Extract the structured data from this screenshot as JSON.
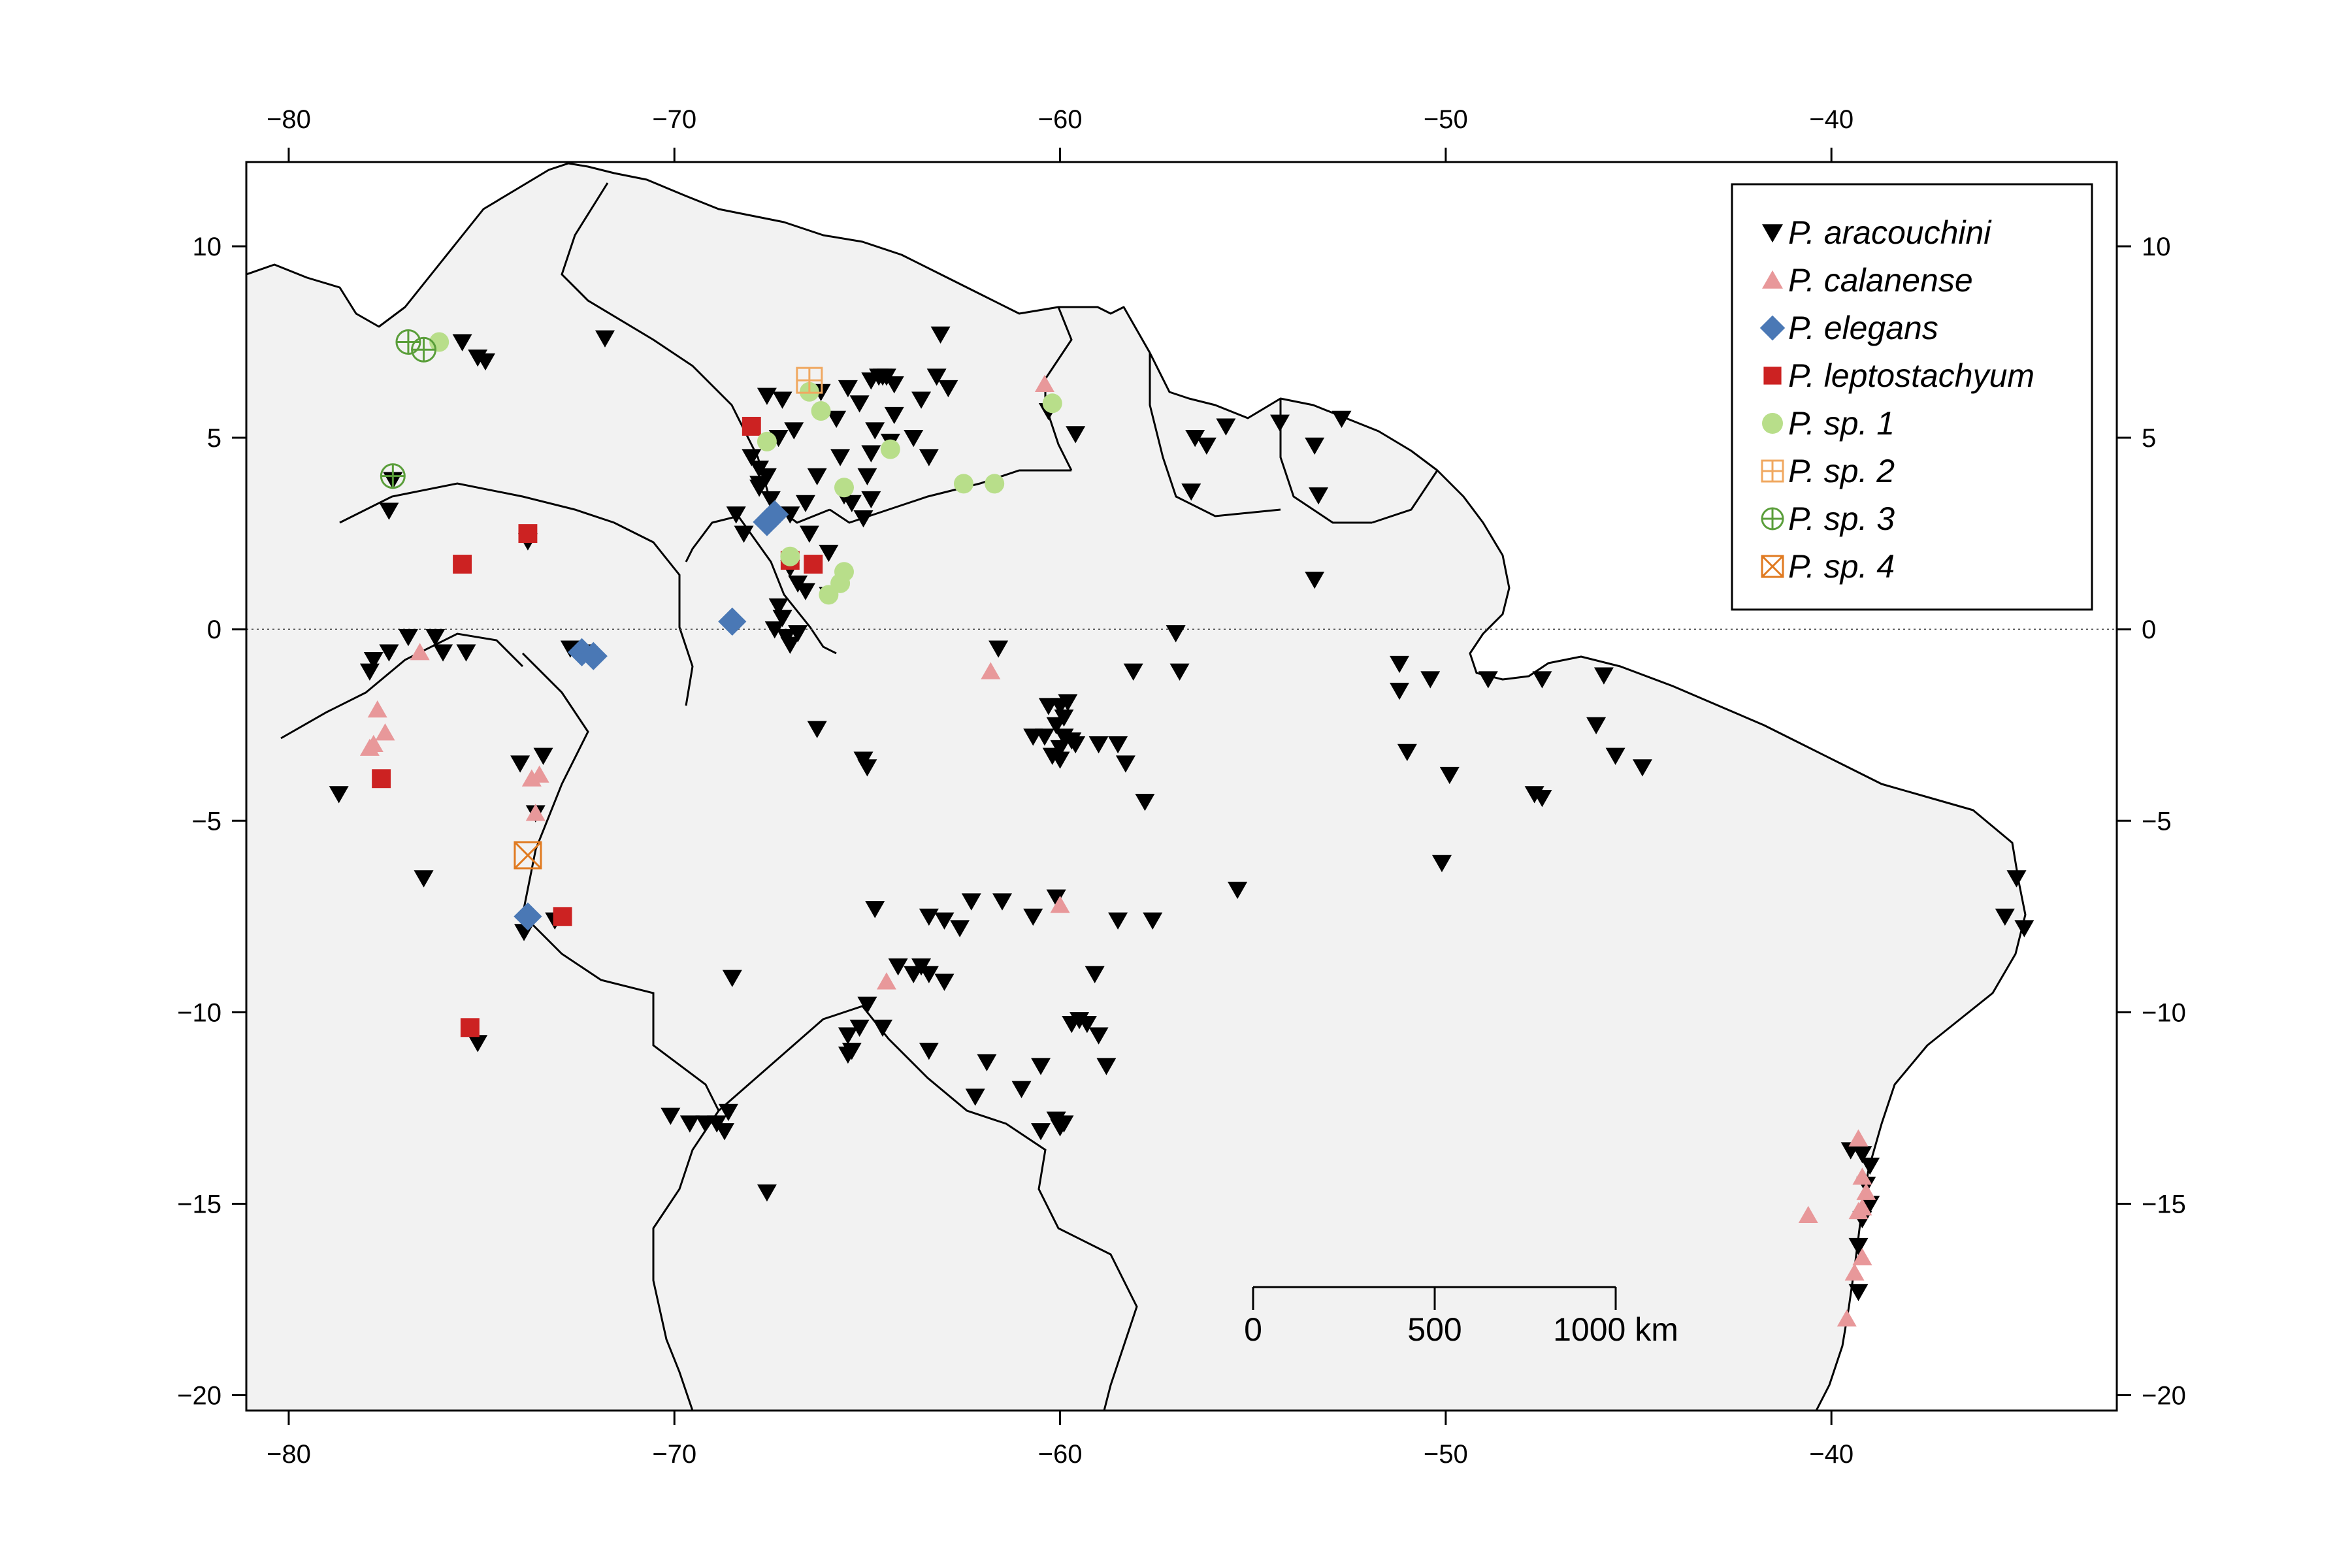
{
  "axes": {
    "x_ticks": [
      -80,
      -70,
      -60,
      -50,
      -40
    ],
    "y_ticks": [
      10,
      5,
      0,
      -5,
      -10,
      -15,
      -20
    ],
    "x_tick_labels": [
      "−80",
      "−70",
      "−60",
      "−50",
      "−40"
    ],
    "y_tick_labels": [
      "10",
      "5",
      "0",
      "−5",
      "−10",
      "−15",
      "−20"
    ],
    "xlim": [
      -81.1,
      -32.6
    ],
    "ylim": [
      -20.4,
      12.2
    ],
    "equator": 0
  },
  "colors": {
    "land": "#f2f2f2",
    "coast": "#000000",
    "aracouchini": "#000000",
    "calanense": "#e8989a",
    "elegans": "#4a78b5",
    "leptostachyum": "#cc2222",
    "sp1": "#b8de8a",
    "sp2": "#f0a860",
    "sp3": "#5a9e3a",
    "sp4": "#e07a20"
  },
  "legend": {
    "placement": "top-right",
    "items": [
      {
        "label": "P. aracouchini",
        "shape": "tri-down",
        "color": "#000000"
      },
      {
        "label": "P. calanense",
        "shape": "tri-up",
        "color": "#e8989a"
      },
      {
        "label": "P. elegans",
        "shape": "diamond",
        "color": "#4a78b5"
      },
      {
        "label": "P. leptostachyum",
        "shape": "square",
        "color": "#cc2222"
      },
      {
        "label": "P. sp. 1",
        "shape": "circle",
        "color": "#b8de8a"
      },
      {
        "label": "P. sp. 2",
        "shape": "boxplus",
        "color": "#f0a860"
      },
      {
        "label": "P. sp. 3",
        "shape": "circleplus",
        "color": "#5a9e3a"
      },
      {
        "label": "P. sp. 4",
        "shape": "boxx",
        "color": "#e07a20"
      }
    ]
  },
  "scale_bar": {
    "labels": [
      "0",
      "500",
      "1000 km"
    ]
  },
  "occurrences": {
    "aracouchini": [
      [
        -75.5,
        7.5
      ],
      [
        -75.1,
        7.1
      ],
      [
        -74.9,
        7.0
      ],
      [
        -71.8,
        7.6
      ],
      [
        -77.3,
        3.9
      ],
      [
        -77.4,
        3.1
      ],
      [
        -73.8,
        2.3
      ],
      [
        -77.8,
        -0.8
      ],
      [
        -77.9,
        -1.1
      ],
      [
        -77.4,
        -0.6
      ],
      [
        -76.9,
        -0.2
      ],
      [
        -76.2,
        -0.2
      ],
      [
        -75.4,
        -0.6
      ],
      [
        -76.0,
        -0.6
      ],
      [
        -73.6,
        -4.8
      ],
      [
        -74.0,
        -3.5
      ],
      [
        -73.4,
        -3.3
      ],
      [
        -76.5,
        -6.5
      ],
      [
        -73.9,
        -7.9
      ],
      [
        -75.1,
        -10.8
      ],
      [
        -78.7,
        -4.3
      ],
      [
        -73.1,
        -7.6
      ],
      [
        -72.7,
        -0.5
      ],
      [
        -72.4,
        -0.6
      ],
      [
        -67.6,
        6.1
      ],
      [
        -67.2,
        6.0
      ],
      [
        -66.2,
        6.2
      ],
      [
        -65.8,
        5.5
      ],
      [
        -65.2,
        5.9
      ],
      [
        -64.7,
        6.6
      ],
      [
        -64.9,
        6.5
      ],
      [
        -64.5,
        6.6
      ],
      [
        -64.3,
        6.4
      ],
      [
        -64.6,
        6.6
      ],
      [
        -63.2,
        6.6
      ],
      [
        -63.1,
        7.7
      ],
      [
        -62.9,
        6.3
      ],
      [
        -64.8,
        5.2
      ],
      [
        -64.4,
        4.9
      ],
      [
        -63.8,
        5.0
      ],
      [
        -63.4,
        4.5
      ],
      [
        -65.0,
        4.0
      ],
      [
        -64.9,
        3.4
      ],
      [
        -65.4,
        3.3
      ],
      [
        -65.1,
        2.9
      ],
      [
        -66.6,
        3.3
      ],
      [
        -67.0,
        3.0
      ],
      [
        -67.5,
        3.4
      ],
      [
        -67.8,
        3.7
      ],
      [
        -68.0,
        4.5
      ],
      [
        -67.8,
        4.2
      ],
      [
        -67.8,
        3.8
      ],
      [
        -68.2,
        2.5
      ],
      [
        -66.5,
        2.5
      ],
      [
        -67.0,
        1.6
      ],
      [
        -66.8,
        1.2
      ],
      [
        -66.6,
        1.0
      ],
      [
        -66.0,
        0.9
      ],
      [
        -67.3,
        0.6
      ],
      [
        -67.2,
        0.3
      ],
      [
        -67.4,
        0.0
      ],
      [
        -67.1,
        -0.2
      ],
      [
        -67.0,
        -0.4
      ],
      [
        -66.8,
        -0.1
      ],
      [
        -67.6,
        4.0
      ],
      [
        -66.9,
        5.2
      ],
      [
        -66.3,
        4.0
      ],
      [
        -65.6,
        3.5
      ],
      [
        -66.0,
        2.0
      ],
      [
        -65.5,
        6.3
      ],
      [
        -68.4,
        3.0
      ],
      [
        -67.3,
        5.0
      ],
      [
        -60.3,
        5.7
      ],
      [
        -59.6,
        5.1
      ],
      [
        -56.5,
        5.0
      ],
      [
        -56.2,
        4.8
      ],
      [
        -55.7,
        5.3
      ],
      [
        -54.3,
        5.4
      ],
      [
        -53.4,
        4.8
      ],
      [
        -52.7,
        5.5
      ],
      [
        -53.3,
        3.5
      ],
      [
        -56.6,
        3.6
      ],
      [
        -53.4,
        1.3
      ],
      [
        -56.9,
        -1.1
      ],
      [
        -57.0,
        -0.1
      ],
      [
        -58.1,
        -1.1
      ],
      [
        -51.2,
        -0.9
      ],
      [
        -51.2,
        -1.6
      ],
      [
        -50.4,
        -1.3
      ],
      [
        -48.9,
        -1.3
      ],
      [
        -47.5,
        -1.3
      ],
      [
        -45.9,
        -1.2
      ],
      [
        -46.1,
        -2.5
      ],
      [
        -45.6,
        -3.3
      ],
      [
        -44.9,
        -3.6
      ],
      [
        -47.7,
        -4.3
      ],
      [
        -47.5,
        -4.4
      ],
      [
        -49.9,
        -3.8
      ],
      [
        -51.0,
        -3.2
      ],
      [
        -50.1,
        -6.1
      ],
      [
        -55.4,
        -6.8
      ],
      [
        -57.6,
        -7.6
      ],
      [
        -58.3,
        -3.5
      ],
      [
        -57.8,
        -4.5
      ],
      [
        -59.0,
        -3.0
      ],
      [
        -58.5,
        -3.0
      ],
      [
        -60.3,
        -2.0
      ],
      [
        -60.0,
        -2.0
      ],
      [
        -59.8,
        -1.9
      ],
      [
        -60.1,
        -2.5
      ],
      [
        -59.9,
        -2.8
      ],
      [
        -60.4,
        -2.8
      ],
      [
        -60.0,
        -3.1
      ],
      [
        -59.7,
        -2.9
      ],
      [
        -60.7,
        -2.8
      ],
      [
        -60.0,
        -3.4
      ],
      [
        -60.2,
        -3.3
      ],
      [
        -59.9,
        -2.3
      ],
      [
        -59.6,
        -3.0
      ],
      [
        -66.3,
        -2.6
      ],
      [
        -65.1,
        -3.4
      ],
      [
        -65.0,
        -3.6
      ],
      [
        -64.8,
        -7.3
      ],
      [
        -63.4,
        -7.5
      ],
      [
        -63.0,
        -7.6
      ],
      [
        -62.6,
        -7.8
      ],
      [
        -62.3,
        -7.1
      ],
      [
        -61.5,
        -7.1
      ],
      [
        -60.7,
        -7.5
      ],
      [
        -60.1,
        -7.0
      ],
      [
        -58.5,
        -7.6
      ],
      [
        -59.1,
        -9.0
      ],
      [
        -59.7,
        -10.3
      ],
      [
        -59.5,
        -10.2
      ],
      [
        -59.3,
        -10.3
      ],
      [
        -59.0,
        -10.6
      ],
      [
        -58.8,
        -11.4
      ],
      [
        -60.5,
        -11.4
      ],
      [
        -61.9,
        -11.3
      ],
      [
        -63.4,
        -11.0
      ],
      [
        -64.6,
        -10.4
      ],
      [
        -65.0,
        -9.8
      ],
      [
        -65.2,
        -10.4
      ],
      [
        -65.5,
        -10.6
      ],
      [
        -65.4,
        -11.0
      ],
      [
        -65.5,
        -11.1
      ],
      [
        -63.8,
        -9.0
      ],
      [
        -63.4,
        -9.0
      ],
      [
        -63.0,
        -9.2
      ],
      [
        -63.6,
        -8.8
      ],
      [
        -64.2,
        -8.8
      ],
      [
        -68.5,
        -9.1
      ],
      [
        -70.1,
        -12.7
      ],
      [
        -69.6,
        -12.9
      ],
      [
        -69.2,
        -12.9
      ],
      [
        -68.9,
        -12.9
      ],
      [
        -68.6,
        -12.6
      ],
      [
        -68.7,
        -13.1
      ],
      [
        -67.6,
        -14.7
      ],
      [
        -60.1,
        -12.8
      ],
      [
        -59.9,
        -12.9
      ],
      [
        -60.0,
        -13.0
      ],
      [
        -60.5,
        -13.1
      ],
      [
        -61.0,
        -12.0
      ],
      [
        -62.2,
        -12.2
      ],
      [
        -39.5,
        -13.6
      ],
      [
        -39.2,
        -13.7
      ],
      [
        -39.0,
        -14.0
      ],
      [
        -39.1,
        -14.5
      ],
      [
        -39.0,
        -15.0
      ],
      [
        -39.2,
        -15.4
      ],
      [
        -39.3,
        -16.1
      ],
      [
        -39.3,
        -17.3
      ],
      [
        -35.5,
        -7.5
      ],
      [
        -35.2,
        -6.5
      ],
      [
        -35.0,
        -7.8
      ],
      [
        -61.6,
        -0.5
      ],
      [
        -64.3,
        5.6
      ],
      [
        -63.6,
        6.0
      ],
      [
        -64.9,
        4.6
      ],
      [
        -65.7,
        4.5
      ]
    ],
    "calanense": [
      [
        -77.7,
        -2.1
      ],
      [
        -77.5,
        -2.7
      ],
      [
        -77.8,
        -3.0
      ],
      [
        -77.9,
        -3.1
      ],
      [
        -76.6,
        -0.6
      ],
      [
        -73.5,
        -3.8
      ],
      [
        -73.7,
        -3.9
      ],
      [
        -73.6,
        -4.8
      ],
      [
        -61.8,
        -1.1
      ],
      [
        -64.5,
        -9.2
      ],
      [
        -60.0,
        -7.2
      ],
      [
        -60.4,
        6.4
      ],
      [
        -40.6,
        -15.3
      ],
      [
        -39.3,
        -13.3
      ],
      [
        -39.2,
        -14.3
      ],
      [
        -39.1,
        -14.7
      ],
      [
        -39.2,
        -15.1
      ],
      [
        -39.3,
        -15.2
      ],
      [
        -39.2,
        -16.4
      ],
      [
        -39.4,
        -16.8
      ],
      [
        -39.6,
        -18.0
      ]
    ],
    "elegans": [
      [
        -72.4,
        -0.6
      ],
      [
        -72.1,
        -0.7
      ],
      [
        -67.6,
        2.8
      ],
      [
        -67.4,
        3.0
      ],
      [
        -68.5,
        0.2
      ],
      [
        -73.8,
        -7.5
      ]
    ],
    "leptostachyum": [
      [
        -68.0,
        5.3
      ],
      [
        -67.0,
        1.8
      ],
      [
        -66.4,
        1.7
      ],
      [
        -75.5,
        1.7
      ],
      [
        -73.8,
        2.5
      ],
      [
        -77.6,
        -3.9
      ],
      [
        -72.9,
        -7.5
      ],
      [
        -75.3,
        -10.4
      ]
    ],
    "sp1": [
      [
        -67.6,
        4.9
      ],
      [
        -66.5,
        6.2
      ],
      [
        -66.2,
        5.7
      ],
      [
        -64.4,
        4.7
      ],
      [
        -65.6,
        3.7
      ],
      [
        -62.5,
        3.8
      ],
      [
        -61.7,
        3.8
      ],
      [
        -60.2,
        5.9
      ],
      [
        -67.0,
        1.9
      ],
      [
        -65.6,
        1.5
      ],
      [
        -66.0,
        0.9
      ],
      [
        -65.7,
        1.2
      ],
      [
        -76.1,
        7.5
      ]
    ],
    "sp2": [
      [
        -66.5,
        6.5
      ]
    ],
    "sp3": [
      [
        -76.9,
        7.5
      ],
      [
        -76.5,
        7.3
      ],
      [
        -77.3,
        4.0
      ]
    ],
    "sp4": [
      [
        -73.8,
        -5.9
      ]
    ]
  }
}
